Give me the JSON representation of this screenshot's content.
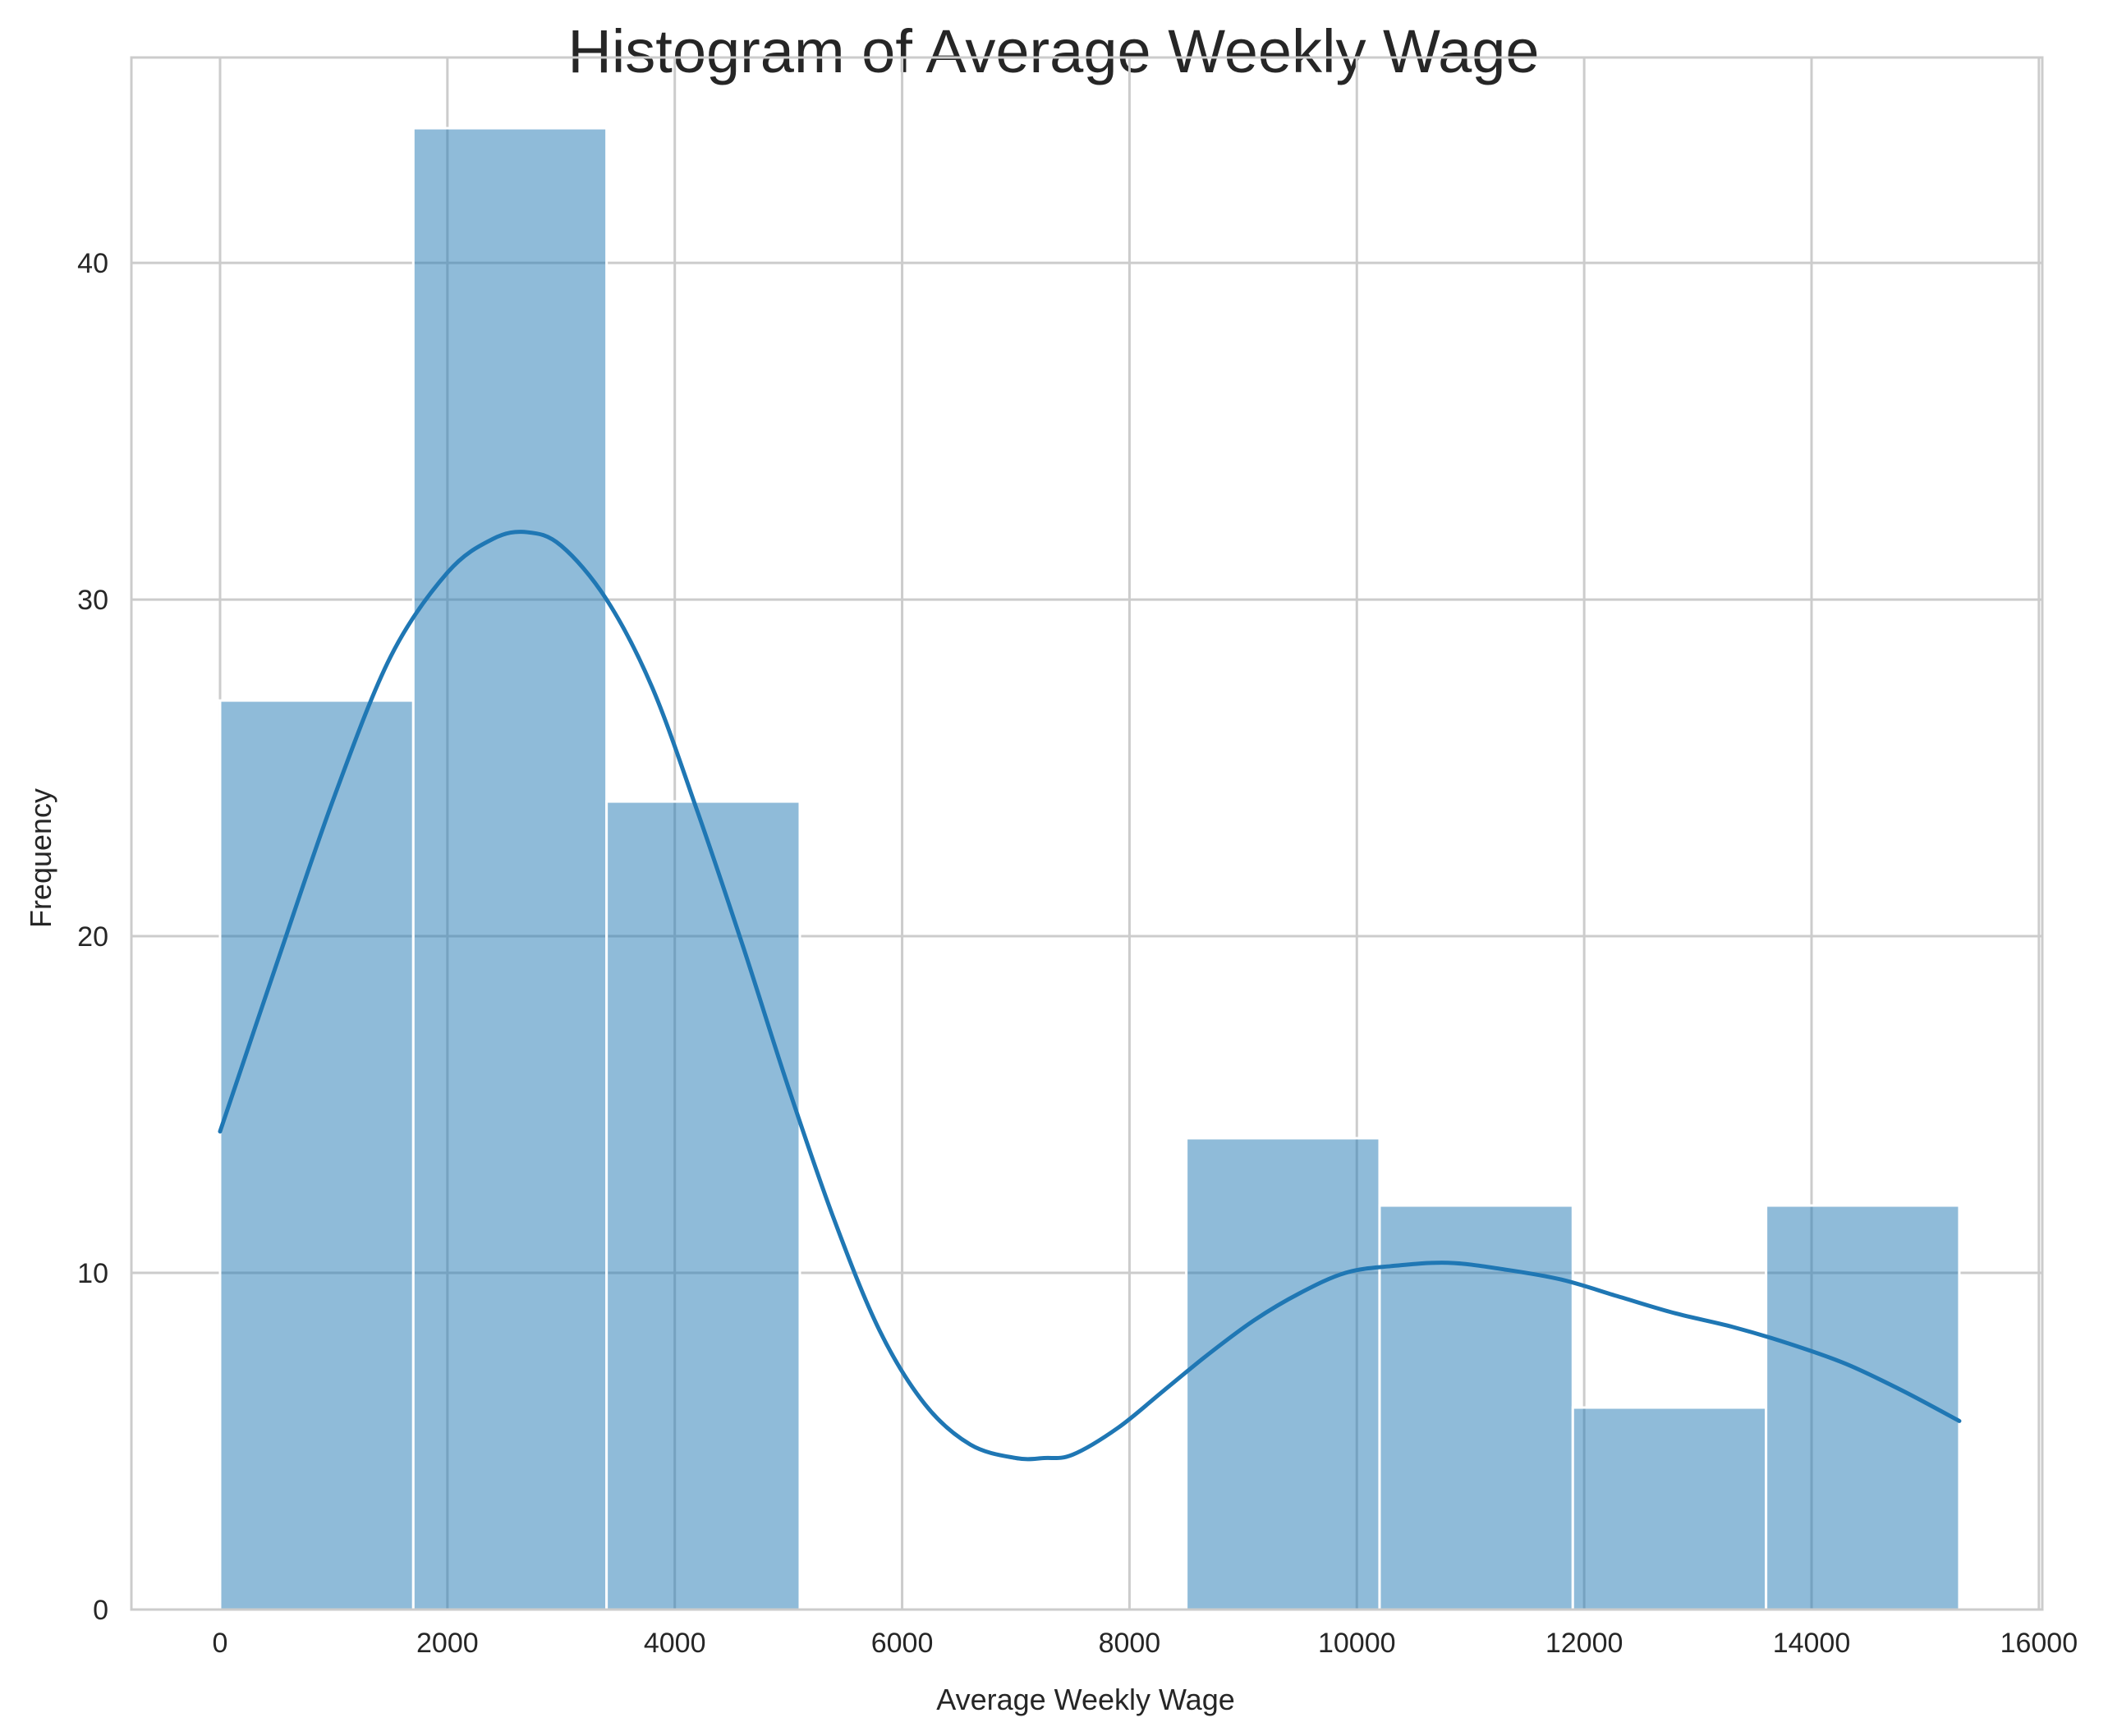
{
  "chart_data": {
    "type": "bar",
    "subtype": "histogram",
    "title": "Histogram of Average Weekly Wage",
    "xlabel": "Average Weekly Wage",
    "ylabel": "Frequency",
    "xlim": [
      -780,
      16030
    ],
    "ylim": [
      0,
      46.1
    ],
    "xticks": [
      0,
      2000,
      4000,
      6000,
      8000,
      10000,
      12000,
      14000,
      16000
    ],
    "yticks": [
      0,
      10,
      20,
      30,
      40
    ],
    "grid": true,
    "bin_edges": [
      0,
      1700,
      3400,
      5100,
      6800,
      8500,
      10200,
      11900,
      13600,
      15300
    ],
    "counts": [
      27,
      44,
      24,
      0,
      0,
      14,
      12,
      6,
      12
    ],
    "bar_color": "#1f77b4",
    "kde": {
      "x": [
        0,
        500,
        1000,
        1500,
        2000,
        2400,
        2700,
        3000,
        3400,
        3800,
        4200,
        4600,
        5000,
        5400,
        5800,
        6200,
        6600,
        7000,
        7250,
        7500,
        7900,
        8300,
        8700,
        9100,
        9500,
        9900,
        10300,
        10800,
        11300,
        11800,
        12300,
        12800,
        13300,
        13800,
        14300,
        14800,
        15300
      ],
      "y": [
        14.2,
        19.2,
        24.1,
        28.3,
        30.8,
        31.8,
        32.0,
        31.6,
        30.0,
        27.4,
        23.7,
        19.7,
        15.5,
        11.6,
        8.3,
        6.1,
        4.9,
        4.5,
        4.5,
        4.6,
        5.4,
        6.5,
        7.6,
        8.6,
        9.4,
        10.0,
        10.2,
        10.3,
        10.1,
        9.8,
        9.3,
        8.8,
        8.4,
        7.9,
        7.3,
        6.5,
        5.6
      ],
      "color": "#1f77b4"
    }
  }
}
